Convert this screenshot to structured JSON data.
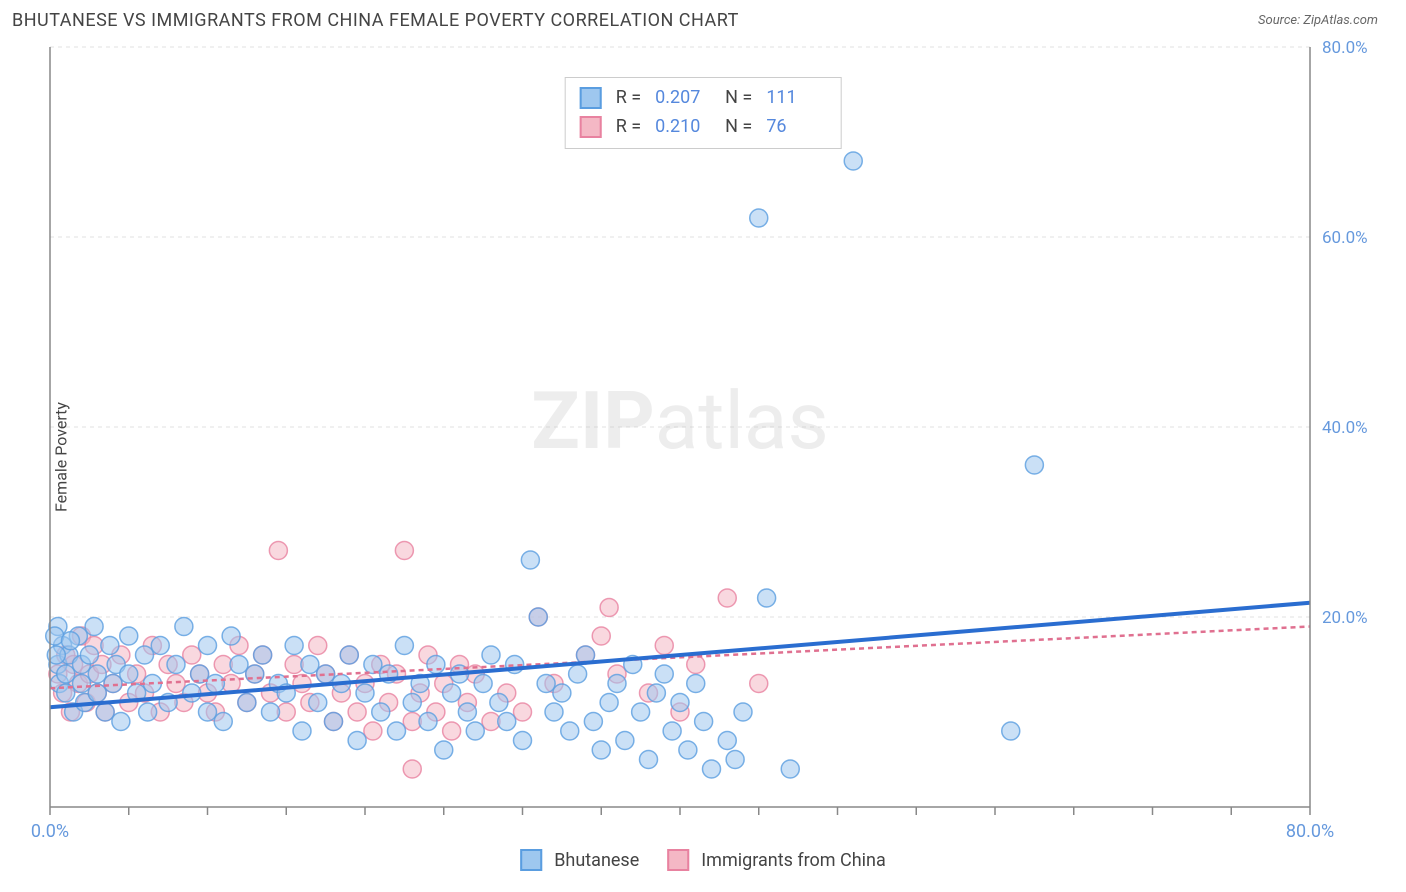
{
  "header": {
    "title": "BHUTANESE VS IMMIGRANTS FROM CHINA FEMALE POVERTY CORRELATION CHART",
    "source": "Source: ZipAtlas.com"
  },
  "ylabel": "Female Poverty",
  "watermark": {
    "zip": "ZIP",
    "atlas": "atlas"
  },
  "chart": {
    "type": "scatter",
    "background": "#ffffff",
    "grid_color": "#e0e0e0",
    "axis_color": "#888888",
    "xlim": [
      0,
      80
    ],
    "ylim": [
      0,
      80
    ],
    "ytick_values": [
      20,
      40,
      60,
      80
    ],
    "ytick_labels": [
      "20.0%",
      "40.0%",
      "60.0%",
      "80.0%"
    ],
    "xtick_major_values": [
      0,
      80
    ],
    "xtick_major_labels": [
      "0.0%",
      "80.0%"
    ],
    "xtick_minor_step": 5,
    "marker_radius": 9,
    "marker_opacity": 0.55
  },
  "series": {
    "a": {
      "label": "Bhutanese",
      "fill": "#9ec7ef",
      "stroke": "#5a9de0",
      "trend_color": "#2a6dd0",
      "trend_width": 4,
      "trend_dash": "",
      "trend": {
        "y_at_x0": 10.5,
        "y_at_xmax": 21.5
      },
      "points": [
        [
          0.5,
          15
        ],
        [
          0.6,
          13
        ],
        [
          0.8,
          17
        ],
        [
          1,
          12
        ],
        [
          1,
          14
        ],
        [
          1.2,
          16
        ],
        [
          1.5,
          10
        ],
        [
          1.8,
          18
        ],
        [
          2,
          13
        ],
        [
          2,
          15
        ],
        [
          2.2,
          11
        ],
        [
          2.5,
          16
        ],
        [
          2.8,
          19
        ],
        [
          3,
          12
        ],
        [
          3,
          14
        ],
        [
          3.5,
          10
        ],
        [
          3.8,
          17
        ],
        [
          4,
          13
        ],
        [
          4.2,
          15
        ],
        [
          4.5,
          9
        ],
        [
          5,
          18
        ],
        [
          5,
          14
        ],
        [
          5.5,
          12
        ],
        [
          6,
          16
        ],
        [
          6.2,
          10
        ],
        [
          6.5,
          13
        ],
        [
          7,
          17
        ],
        [
          7.5,
          11
        ],
        [
          8,
          15
        ],
        [
          8.5,
          19
        ],
        [
          9,
          12
        ],
        [
          9.5,
          14
        ],
        [
          10,
          10
        ],
        [
          10,
          17
        ],
        [
          10.5,
          13
        ],
        [
          11,
          9
        ],
        [
          11.5,
          18
        ],
        [
          12,
          15
        ],
        [
          12.5,
          11
        ],
        [
          13,
          14
        ],
        [
          13.5,
          16
        ],
        [
          14,
          10
        ],
        [
          14.5,
          13
        ],
        [
          15,
          12
        ],
        [
          15.5,
          17
        ],
        [
          16,
          8
        ],
        [
          16.5,
          15
        ],
        [
          17,
          11
        ],
        [
          17.5,
          14
        ],
        [
          18,
          9
        ],
        [
          18.5,
          13
        ],
        [
          19,
          16
        ],
        [
          19.5,
          7
        ],
        [
          20,
          12
        ],
        [
          20.5,
          15
        ],
        [
          21,
          10
        ],
        [
          21.5,
          14
        ],
        [
          22,
          8
        ],
        [
          22.5,
          17
        ],
        [
          23,
          11
        ],
        [
          23.5,
          13
        ],
        [
          24,
          9
        ],
        [
          24.5,
          15
        ],
        [
          25,
          6
        ],
        [
          25.5,
          12
        ],
        [
          26,
          14
        ],
        [
          26.5,
          10
        ],
        [
          27,
          8
        ],
        [
          27.5,
          13
        ],
        [
          28,
          16
        ],
        [
          28.5,
          11
        ],
        [
          29,
          9
        ],
        [
          29.5,
          15
        ],
        [
          30,
          7
        ],
        [
          30.5,
          26
        ],
        [
          31,
          20
        ],
        [
          31.5,
          13
        ],
        [
          32,
          10
        ],
        [
          32.5,
          12
        ],
        [
          33,
          8
        ],
        [
          33.5,
          14
        ],
        [
          34,
          16
        ],
        [
          34.5,
          9
        ],
        [
          35,
          6
        ],
        [
          35.5,
          11
        ],
        [
          36,
          13
        ],
        [
          36.5,
          7
        ],
        [
          37,
          15
        ],
        [
          37.5,
          10
        ],
        [
          38,
          5
        ],
        [
          38.5,
          12
        ],
        [
          39,
          14
        ],
        [
          39.5,
          8
        ],
        [
          40,
          11
        ],
        [
          40.5,
          6
        ],
        [
          41,
          13
        ],
        [
          41.5,
          9
        ],
        [
          42,
          4
        ],
        [
          43,
          7
        ],
        [
          43.5,
          5
        ],
        [
          44,
          10
        ],
        [
          45,
          62
        ],
        [
          45.5,
          22
        ],
        [
          47,
          4
        ],
        [
          51,
          68
        ],
        [
          61,
          8
        ],
        [
          62.5,
          36
        ],
        [
          0.5,
          19
        ],
        [
          0.3,
          18
        ],
        [
          0.4,
          16
        ],
        [
          1.3,
          17.5
        ]
      ]
    },
    "b": {
      "label": "Immigrants from China",
      "fill": "#f4b8c5",
      "stroke": "#e882a0",
      "trend_color": "#e07090",
      "trend_width": 2.5,
      "trend_dash": "5 4",
      "trend": {
        "y_at_x0": 12.5,
        "y_at_xmax": 19.0
      },
      "points": [
        [
          0.5,
          14
        ],
        [
          0.8,
          12
        ],
        [
          1,
          16
        ],
        [
          1.3,
          10
        ],
        [
          1.5,
          15
        ],
        [
          1.8,
          13
        ],
        [
          2,
          18
        ],
        [
          2.3,
          11
        ],
        [
          2.5,
          14
        ],
        [
          2.8,
          17
        ],
        [
          3,
          12
        ],
        [
          3.3,
          15
        ],
        [
          3.5,
          10
        ],
        [
          4,
          13
        ],
        [
          4.5,
          16
        ],
        [
          5,
          11
        ],
        [
          5.5,
          14
        ],
        [
          6,
          12
        ],
        [
          6.5,
          17
        ],
        [
          7,
          10
        ],
        [
          7.5,
          15
        ],
        [
          8,
          13
        ],
        [
          8.5,
          11
        ],
        [
          9,
          16
        ],
        [
          9.5,
          14
        ],
        [
          10,
          12
        ],
        [
          10.5,
          10
        ],
        [
          11,
          15
        ],
        [
          11.5,
          13
        ],
        [
          12,
          17
        ],
        [
          12.5,
          11
        ],
        [
          13,
          14
        ],
        [
          13.5,
          16
        ],
        [
          14,
          12
        ],
        [
          14.5,
          27
        ],
        [
          15,
          10
        ],
        [
          15.5,
          15
        ],
        [
          16,
          13
        ],
        [
          16.5,
          11
        ],
        [
          17,
          17
        ],
        [
          17.5,
          14
        ],
        [
          18,
          9
        ],
        [
          18.5,
          12
        ],
        [
          19,
          16
        ],
        [
          19.5,
          10
        ],
        [
          20,
          13
        ],
        [
          20.5,
          8
        ],
        [
          21,
          15
        ],
        [
          21.5,
          11
        ],
        [
          22,
          14
        ],
        [
          22.5,
          27
        ],
        [
          23,
          9
        ],
        [
          23.5,
          12
        ],
        [
          24,
          16
        ],
        [
          24.5,
          10
        ],
        [
          25,
          13
        ],
        [
          25.5,
          8
        ],
        [
          26,
          15
        ],
        [
          26.5,
          11
        ],
        [
          27,
          14
        ],
        [
          28,
          9
        ],
        [
          29,
          12
        ],
        [
          30,
          10
        ],
        [
          31,
          20
        ],
        [
          32,
          13
        ],
        [
          34,
          16
        ],
        [
          35,
          18
        ],
        [
          35.5,
          21
        ],
        [
          36,
          14
        ],
        [
          38,
          12
        ],
        [
          39,
          17
        ],
        [
          40,
          10
        ],
        [
          41,
          15
        ],
        [
          43,
          22
        ],
        [
          45,
          13
        ],
        [
          23,
          4
        ]
      ]
    }
  },
  "stats": {
    "rows": [
      {
        "series": "a",
        "r": "0.207",
        "n": "111"
      },
      {
        "series": "b",
        "r": "0.210",
        "n": "76"
      }
    ],
    "r_label": "R =",
    "n_label": "N ="
  }
}
